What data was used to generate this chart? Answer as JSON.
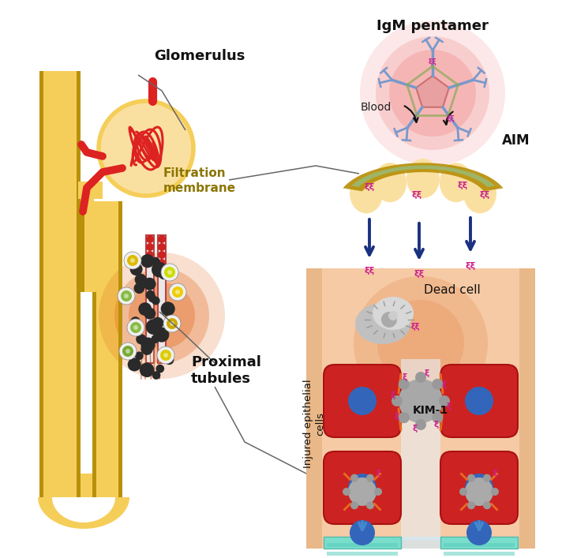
{
  "bg_color": "#ffffff",
  "label_glomerulus": "Glomerulus",
  "label_filtration": "Filtration\nmembrane",
  "label_proximal": "Proximal\ntubules",
  "label_igm": "IgM pentamer",
  "label_blood": "Blood",
  "label_aim": "AIM",
  "label_dead": "Dead cell",
  "label_kim": "KIM-1",
  "label_injured": "Injured epithelial\ncells",
  "yellow_color": "#F5CE5A",
  "yellow_light": "#FAE0A0",
  "dark_yellow": "#B8900A",
  "red_color": "#CC2222",
  "red_dark": "#AA1111",
  "blue_cell": "#3366BB",
  "teal_color": "#7ADECC",
  "teal_dark": "#55BBAA",
  "teal_stripe": "#55CCBB",
  "orange_glow": "#E06010",
  "pink_glow": "#F08080",
  "peach_color": "#F5C8A0",
  "peach_wall": "#E8B888",
  "green_membrane": "#99BB77",
  "navy_arrow": "#1A3080",
  "blue_arrow": "#4488CC",
  "gray_cell": "#AAAAAA",
  "magenta_aim": "#CC2090",
  "line_color": "#666666",
  "olive_text": "#8B7500"
}
